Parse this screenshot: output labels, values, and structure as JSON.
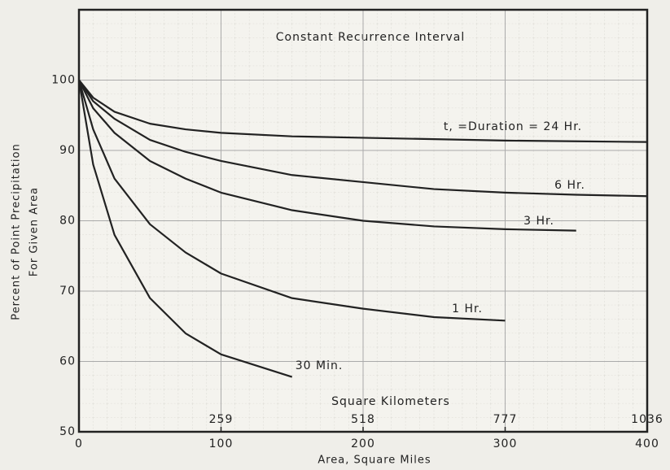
{
  "chart_data": {
    "type": "line",
    "title": "Constant Recurrence Interval",
    "x_label": "Area, Square Miles",
    "y_label": [
      "Percent of Point Precipitation",
      "For Given Area"
    ],
    "x2_label": "Square Kilometers",
    "x": [
      0,
      10,
      25,
      50,
      75,
      100,
      150,
      200,
      250,
      300,
      350,
      400
    ],
    "series": [
      {
        "name": "t, =Duration = 24 Hr.",
        "color": "#222222",
        "values": [
          100,
          97.5,
          95.5,
          93.8,
          93,
          92.5,
          92,
          91.8,
          91.6,
          91.4,
          91.3,
          91.2
        ]
      },
      {
        "name": "6 Hr.",
        "color": "#222222",
        "values": [
          100,
          97,
          94.5,
          91.5,
          89.8,
          88.5,
          86.5,
          85.5,
          84.5,
          84,
          83.7,
          83.5
        ]
      },
      {
        "name": "3 Hr.",
        "color": "#222222",
        "values": [
          100,
          96,
          92.5,
          88.5,
          86,
          84,
          81.5,
          80,
          79.2,
          78.8,
          78.6,
          null
        ]
      },
      {
        "name": "1 Hr.",
        "color": "#222222",
        "values": [
          100,
          93,
          86,
          79.5,
          75.5,
          72.5,
          69,
          67.5,
          66.3,
          65.8,
          null,
          null
        ]
      },
      {
        "name": "30 Min.",
        "color": "#222222",
        "values": [
          100,
          88,
          78,
          69,
          64,
          61,
          57.8,
          null,
          null,
          null,
          null,
          null
        ]
      }
    ],
    "xlim": [
      0,
      400
    ],
    "xticks": [
      0,
      100,
      200,
      300,
      400
    ],
    "ylim": [
      50,
      110
    ],
    "yticks": [
      50,
      60,
      70,
      80,
      90,
      100
    ],
    "x2lim": [
      0,
      1036
    ],
    "x2ticks": [
      259,
      518,
      777,
      1036
    ],
    "grid": true
  }
}
